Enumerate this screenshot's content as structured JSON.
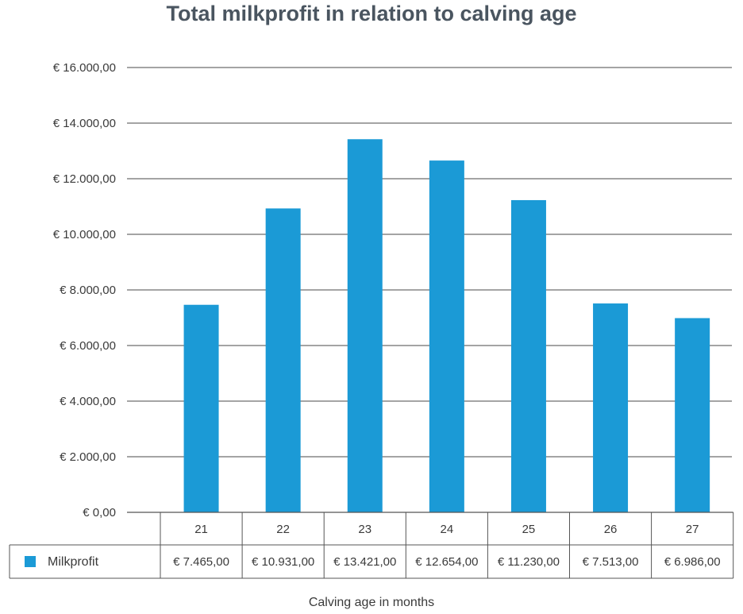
{
  "chart_data": {
    "type": "bar",
    "title": "Total milkprofit in relation to calving age",
    "xlabel": "Calving age in months",
    "ylabel": "",
    "categories": [
      "21",
      "22",
      "23",
      "24",
      "25",
      "26",
      "27"
    ],
    "series": [
      {
        "name": "Milkprofit",
        "values": [
          7465,
          10931,
          13421,
          12654,
          11230,
          7513,
          6986
        ],
        "labels": [
          "€ 7.465,00",
          "€ 10.931,00",
          "€ 13.421,00",
          "€ 12.654,00",
          "€ 11.230,00",
          "€ 7.513,00",
          "€ 6.986,00"
        ],
        "color": "#1b9ad6"
      }
    ],
    "ylim": [
      0,
      16000
    ],
    "yticks": [
      0,
      2000,
      4000,
      6000,
      8000,
      10000,
      12000,
      14000,
      16000
    ],
    "ytick_labels": [
      "€ 0,00",
      "€ 2.000,00",
      "€ 4.000,00",
      "€ 6.000,00",
      "€ 8.000,00",
      "€ 10.000,00",
      "€ 12.000,00",
      "€ 14.000,00",
      "€ 16.000,00"
    ],
    "grid": true,
    "legend": "data-table-left",
    "colors": {
      "bar": "#1b9ad6",
      "grid": "#4a4a4a",
      "table_border": "#555555"
    }
  }
}
